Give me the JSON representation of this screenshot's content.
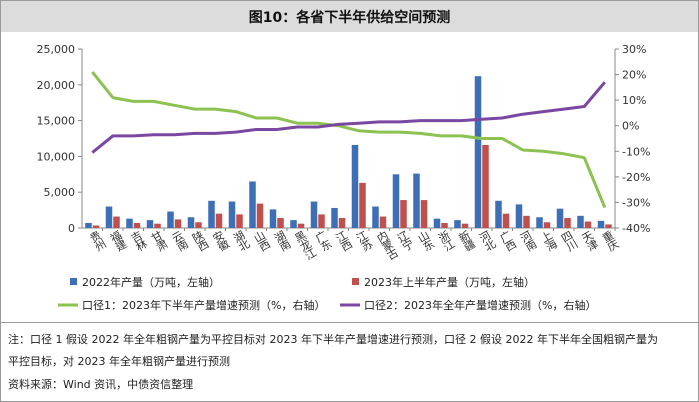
{
  "title": "图10：各省下半年供给空间预测",
  "chart_data": {
    "type": "bar+line",
    "categories": [
      "贵州",
      "福建",
      "吉林",
      "甘肃",
      "云南",
      "陕西",
      "安徽",
      "湖北",
      "山西",
      "湖南",
      "黑龙江",
      "广东",
      "江西",
      "江苏",
      "内蒙古",
      "辽宁",
      "山东",
      "浙江",
      "新疆",
      "河北",
      "广西",
      "河南",
      "上海",
      "四川",
      "天津",
      "重庆"
    ],
    "left_axis": {
      "min": 0,
      "max": 25000,
      "ticks": [
        "0",
        "5,000",
        "10,000",
        "15,000",
        "20,000",
        "25,000"
      ]
    },
    "right_axis": {
      "min": -40,
      "max": 30,
      "ticks": [
        "-40%",
        "-30%",
        "-20%",
        "-10%",
        "0%",
        "10%",
        "20%",
        "30%"
      ]
    },
    "series": [
      {
        "name": "2022年产量（万吨，左轴）",
        "kind": "bar",
        "axis": "left",
        "color": "#3d6fb6",
        "values": [
          700,
          3000,
          1300,
          1100,
          2300,
          1500,
          3800,
          3700,
          6500,
          2600,
          1100,
          3700,
          2800,
          11600,
          3000,
          7500,
          7600,
          1300,
          1100,
          21200,
          3800,
          3300,
          1500,
          2700,
          1700,
          1000
        ]
      },
      {
        "name": "2023年上半年产量（万吨，左轴）",
        "kind": "bar",
        "axis": "left",
        "color": "#c0504d",
        "values": [
          350,
          1600,
          700,
          600,
          1200,
          800,
          2000,
          1900,
          3400,
          1400,
          600,
          1900,
          1400,
          6300,
          1600,
          3900,
          3900,
          700,
          600,
          11600,
          2000,
          1700,
          800,
          1400,
          900,
          500
        ]
      },
      {
        "name": "口径1：2023年下半年产量增速预测（%，右轴）",
        "kind": "line",
        "axis": "right",
        "color": "#8cc251",
        "values": [
          21,
          11,
          9.5,
          9.5,
          8,
          6.5,
          6.5,
          5.5,
          3,
          3,
          1,
          1,
          0,
          -2,
          -2.5,
          -2.5,
          -3,
          -4,
          -4,
          -5,
          -5,
          -9.5,
          -10,
          -11,
          -12.5,
          -32
        ]
      },
      {
        "name": "口径2：2023年全年产量增速预测（%，右轴）",
        "kind": "line",
        "axis": "right",
        "color": "#7a47a1",
        "values": [
          -10.5,
          -4,
          -4,
          -3.5,
          -3.5,
          -3,
          -3,
          -2.5,
          -1.5,
          -1.5,
          -0.5,
          -0.5,
          0.5,
          1,
          1.5,
          1.5,
          2,
          2,
          2,
          2.5,
          3,
          4.5,
          5.5,
          6.5,
          7.5,
          17
        ]
      }
    ]
  },
  "notes": {
    "line1": "注：口径 1 假设 2022 年全年粗钢产量为平控目标对 2023 年下半年产量增速进行预测，口径 2 假设 2022 年下半年全国粗钢产量为",
    "line2": "平控目标，对 2023 年全年粗钢产量进行预测",
    "source": "资料来源：Wind 资讯，中债资信整理"
  }
}
